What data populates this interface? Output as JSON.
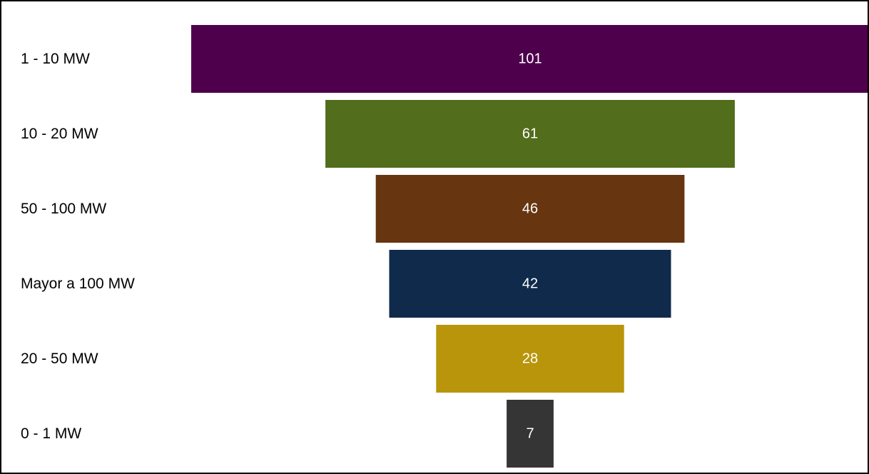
{
  "chart_data": {
    "type": "bar",
    "subtype": "funnel",
    "title": "",
    "xlabel": "",
    "ylabel": "",
    "grid": false,
    "legend": "none",
    "categories": [
      "1 - 10 MW",
      "10 - 20 MW",
      "50 - 100 MW",
      "Mayor a 100 MW",
      "20 - 50 MW",
      "0 - 1 MW"
    ],
    "values": [
      101,
      61,
      46,
      42,
      28,
      7
    ],
    "colors": [
      "#4e004c",
      "#526d1b",
      "#67350f",
      "#0f2a4b",
      "#b8950a",
      "#353535"
    ]
  }
}
